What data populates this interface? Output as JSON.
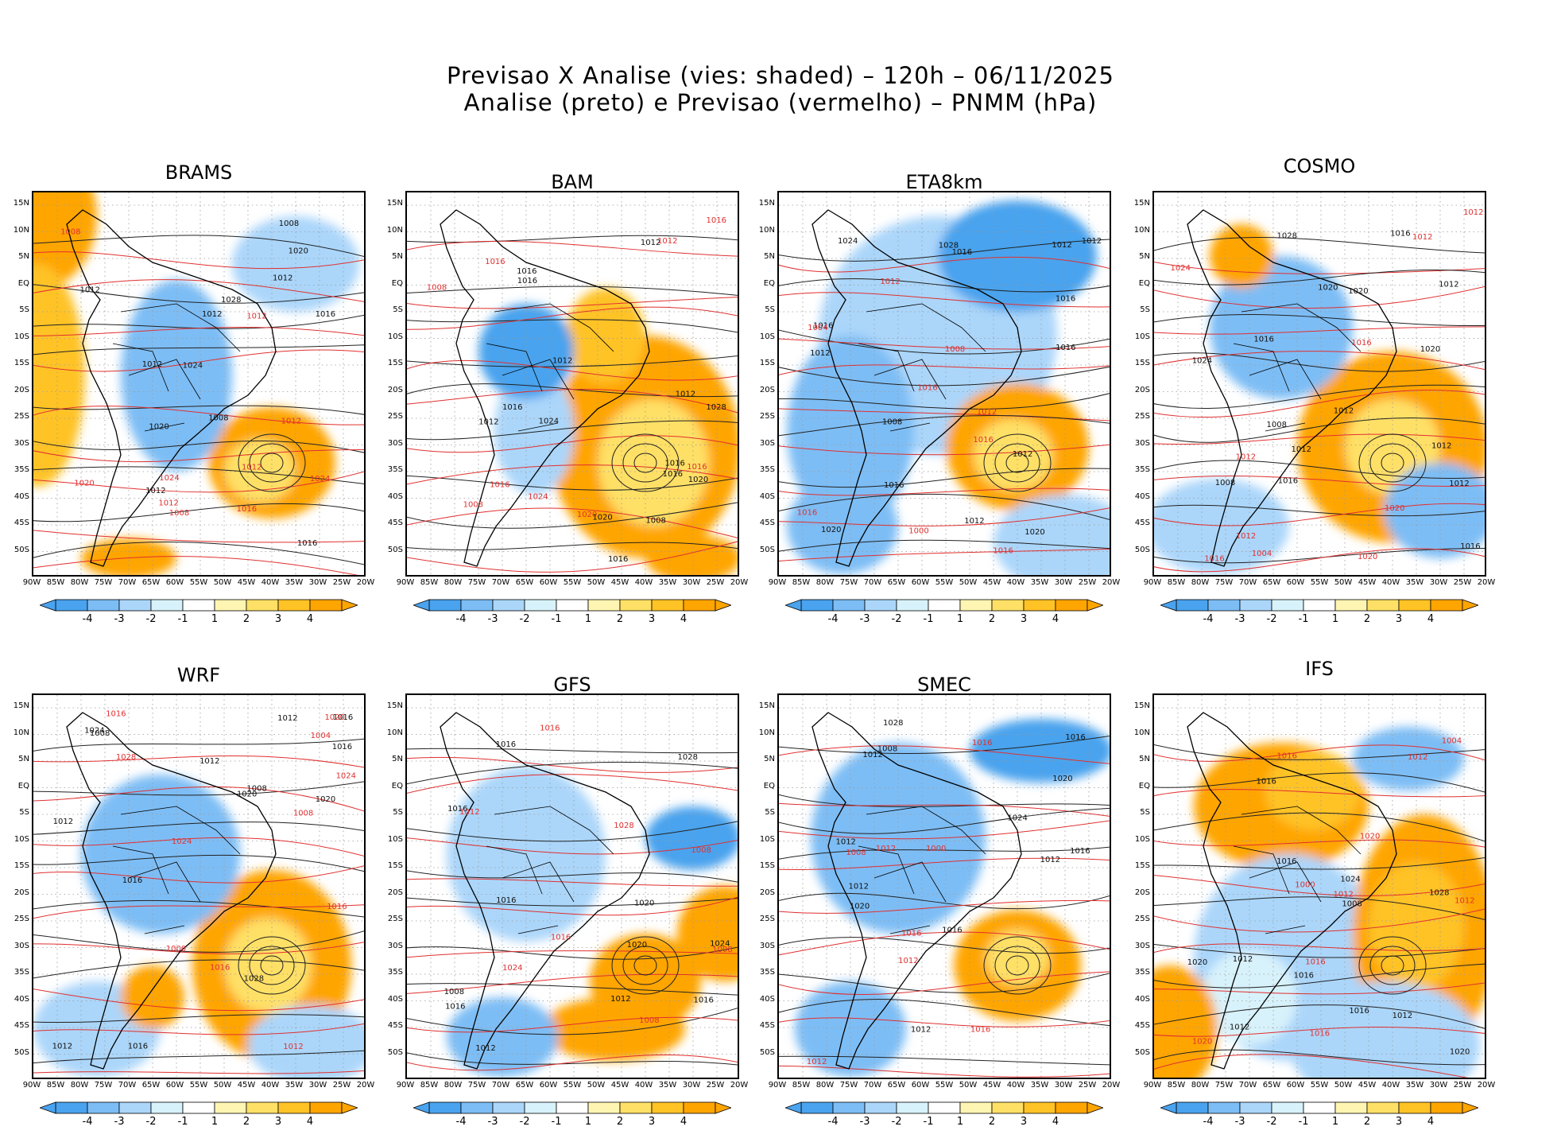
{
  "title": {
    "line1": "Previsao X Analise (vies: shaded) – 120h – 06/11/2025",
    "line2": "Analise (preto) e Previsao (vermelho) – PNMM (hPa)"
  },
  "lat_labels": [
    "15N",
    "10N",
    "5N",
    "EQ",
    "5S",
    "10S",
    "15S",
    "20S",
    "25S",
    "30S",
    "35S",
    "40S",
    "45S",
    "50S"
  ],
  "lon_labels": [
    "90W",
    "85W",
    "80W",
    "75W",
    "70W",
    "65W",
    "60W",
    "55W",
    "50W",
    "45W",
    "40W",
    "35W",
    "30W",
    "25W",
    "20W"
  ],
  "colorbar": {
    "labels": [
      "-4",
      "-3",
      "-2",
      "-1",
      "1",
      "2",
      "3",
      "4"
    ],
    "colors": [
      "#4aa3ee",
      "#7dbdf5",
      "#abd6fa",
      "#d8f2fb",
      "#ffffff",
      "#fff5b2",
      "#ffe066",
      "#ffc326",
      "#ffa500"
    ]
  },
  "panels": [
    {
      "name": "BRAMS",
      "analysis_labels": [
        "1016",
        "1012",
        "1012",
        "1012",
        "1020",
        "1016",
        "1012",
        "1024",
        "1028",
        "1020",
        "1008",
        "1012",
        "1008"
      ],
      "forecast_labels": [
        "1012",
        "1012",
        "1008",
        "1008",
        "1020",
        "1016",
        "1024",
        "1012",
        "1012",
        "1024"
      ]
    },
    {
      "name": "BAM",
      "analysis_labels": [
        "1012",
        "1016",
        "1016",
        "1012",
        "1016",
        "1012",
        "1016",
        "1008",
        "1012",
        "1024",
        "1028",
        "1020",
        "1016",
        "1016",
        "1020"
      ],
      "forecast_labels": [
        "1016",
        "1008",
        "1012",
        "1016",
        "1020",
        "1016",
        "1024",
        "1008",
        "1016"
      ]
    },
    {
      "name": "ETA8km",
      "analysis_labels": [
        "1012",
        "1016",
        "1016",
        "1012",
        "1016",
        "1012",
        "1012",
        "1016",
        "1008",
        "1012",
        "1024",
        "1028",
        "1020",
        "1016",
        "1020"
      ],
      "forecast_labels": [
        "1016",
        "1012",
        "1008",
        "1012",
        "1016",
        "1016",
        "1004",
        "1000",
        "1016"
      ]
    },
    {
      "name": "COSMO",
      "analysis_labels": [
        "1012",
        "1016",
        "1012",
        "1012",
        "1016",
        "1012",
        "1020",
        "1016",
        "1008",
        "1012",
        "1008",
        "1024",
        "1028",
        "1020",
        "1016",
        "1020"
      ],
      "forecast_labels": [
        "1012",
        "1012",
        "1016",
        "1012",
        "1016",
        "1020",
        "1020",
        "1024",
        "1004",
        "1012"
      ]
    },
    {
      "name": "WRF",
      "analysis_labels": [
        "1016",
        "1016",
        "1012",
        "1012",
        "1016",
        "1020",
        "1016",
        "1008",
        "1012",
        "1008",
        "1012",
        "1028",
        "1020",
        "1024"
      ],
      "forecast_labels": [
        "1016",
        "1012",
        "1008",
        "1020",
        "1016",
        "1024",
        "1028",
        "1024",
        "1004",
        "1000",
        "1016"
      ]
    },
    {
      "name": "GFS",
      "analysis_labels": [
        "1016",
        "1012",
        "1016",
        "1012",
        "1016",
        "1016",
        "1008",
        "1024",
        "1028",
        "1020",
        "1020",
        "1016"
      ],
      "forecast_labels": [
        "1008",
        "1008",
        "1016",
        "1008",
        "1016",
        "1028",
        "1024",
        "1012"
      ]
    },
    {
      "name": "SMEC",
      "analysis_labels": [
        "1016",
        "1012",
        "1012",
        "1016",
        "1012",
        "1016",
        "1012",
        "1008",
        "1024",
        "1028",
        "1020",
        "1012",
        "1020"
      ],
      "forecast_labels": [
        "1012",
        "1016",
        "1008",
        "1012",
        "1016",
        "1016",
        "1012",
        "1000"
      ]
    },
    {
      "name": "IFS",
      "analysis_labels": [
        "1012",
        "1016",
        "1012",
        "1016",
        "1012",
        "1020",
        "1016",
        "1008",
        "1024",
        "1028",
        "1020",
        "1016"
      ],
      "forecast_labels": [
        "1016",
        "1012",
        "1012",
        "1016",
        "1020",
        "1020",
        "1004",
        "1000",
        "1012",
        "1016"
      ]
    }
  ]
}
